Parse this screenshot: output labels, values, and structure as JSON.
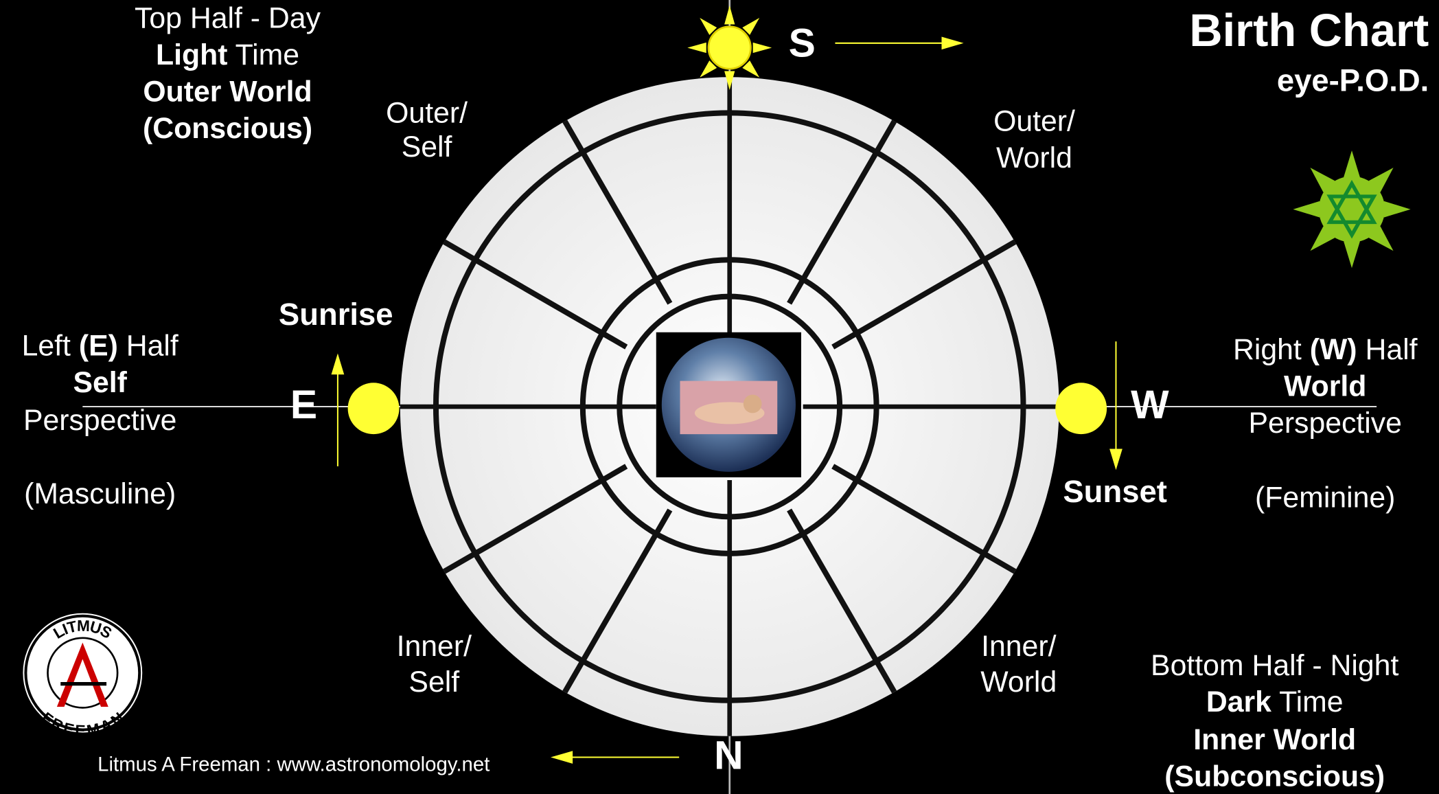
{
  "title": "Birth Chart",
  "subtitle": "eye-P.O.D.",
  "directions": {
    "south": "S",
    "north": "N",
    "east": "E",
    "west": "W"
  },
  "sunrise": "Sunrise",
  "sunset": "Sunset",
  "quadrants": {
    "outer_self": [
      "Outer/",
      "Self"
    ],
    "outer_world": [
      "Outer/",
      "World"
    ],
    "inner_self": [
      "Inner/",
      "Self"
    ],
    "inner_world": [
      "Inner/",
      "World"
    ]
  },
  "top_half": {
    "line1": "Top Half - Day",
    "line2": [
      "Light",
      " Time"
    ],
    "line3": "Outer World",
    "line4": "(Conscious)"
  },
  "left_half": {
    "line1": [
      "Left ",
      "(E)",
      " Half"
    ],
    "line2": "Self",
    "line3": "Perspective",
    "line4": "(Masculine)"
  },
  "right_half": {
    "line1": [
      "Right ",
      "(W)",
      " Half"
    ],
    "line2": "World",
    "line3": "Perspective",
    "line4": "(Feminine)"
  },
  "bottom_half": {
    "line1": "Bottom Half - Night",
    "line2": [
      "Dark",
      " Time"
    ],
    "line3": "Inner World",
    "line4": "(Subconscious)"
  },
  "logo": {
    "top": "LITMUS",
    "bottom": "FREEMAN"
  },
  "footer": "Litmus A Freeman : www.astronomology.net"
}
